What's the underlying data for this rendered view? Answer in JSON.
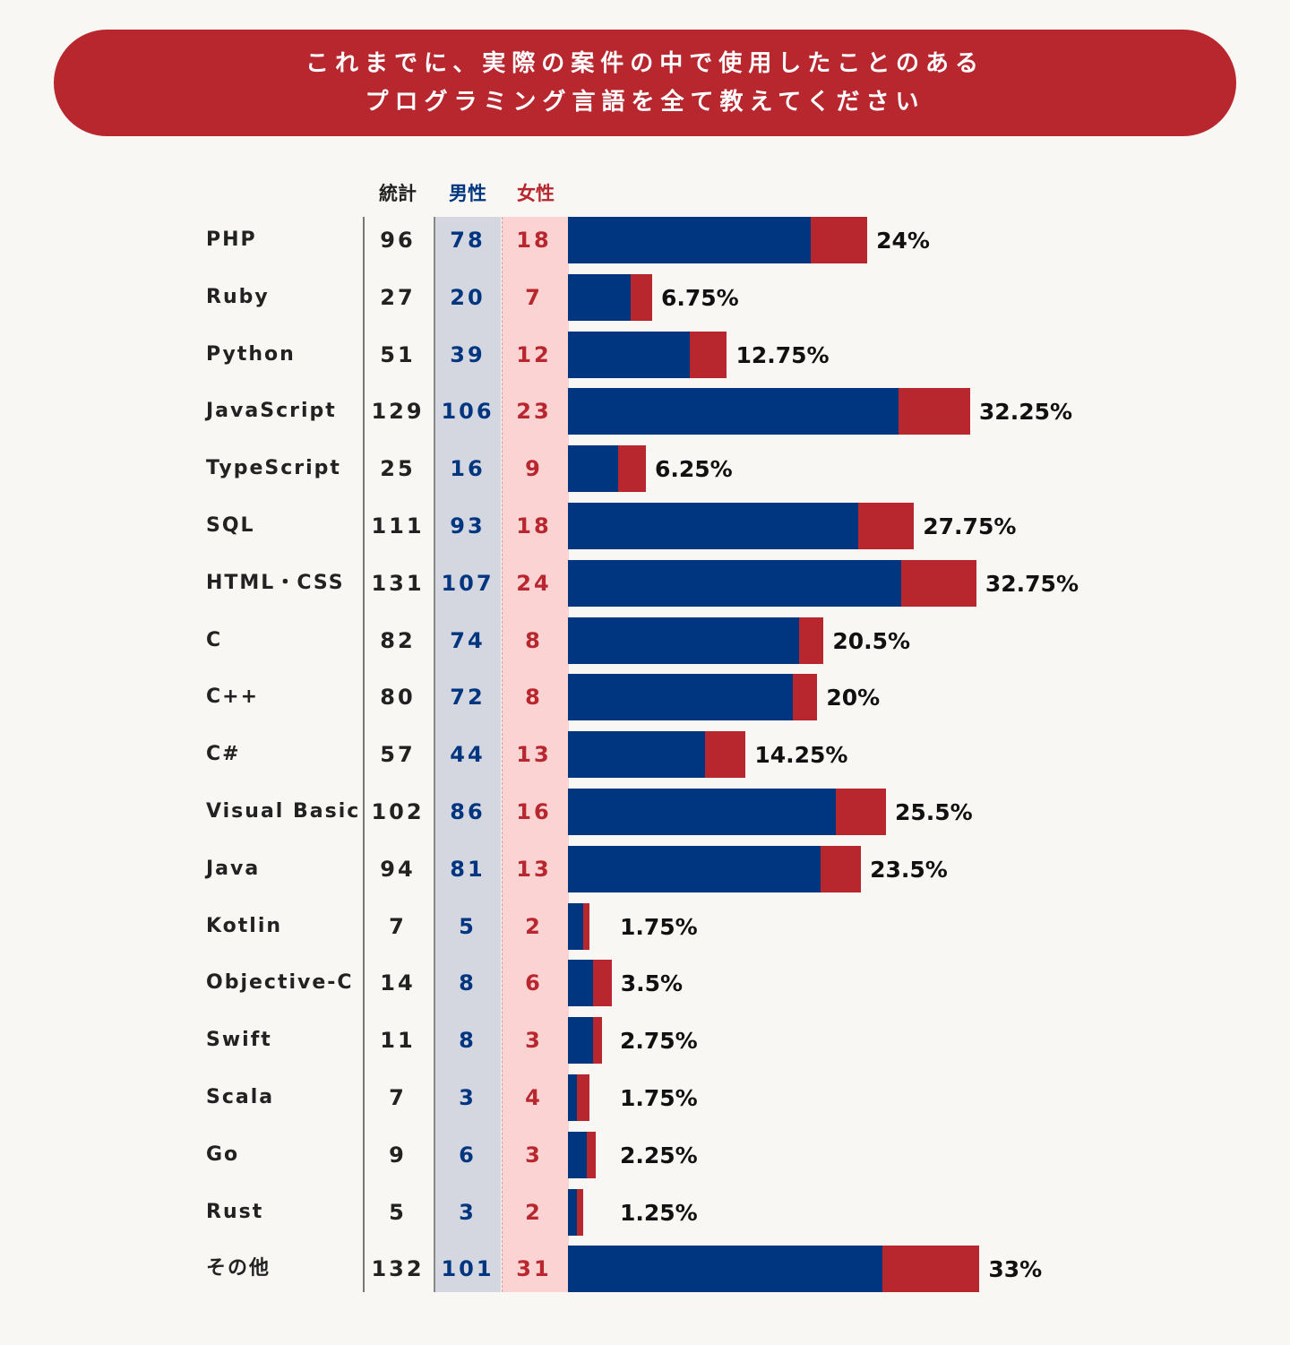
{
  "title_lines": [
    "これまでに、実際の案件の中で使用したことのある",
    "プログラミング言語を全て教えてください"
  ],
  "colors": {
    "male": "#003580",
    "female": "#b8262e",
    "male_bg": "#d5d7e0",
    "female_bg": "#fcd3d3"
  },
  "chart_data": {
    "type": "bar",
    "stacked": true,
    "orientation": "horizontal",
    "title": "これまでに、実際の案件の中で使用したことのある プログラミング言語を全て教えてください",
    "column_headers": {
      "total": "統計",
      "male": "男性",
      "female": "女性"
    },
    "categories": [
      "PHP",
      "Ruby",
      "Python",
      "JavaScript",
      "TypeScript",
      "SQL",
      "HTML・CSS",
      "C",
      "C++",
      "C#",
      "Visual Basic",
      "Java",
      "Kotlin",
      "Objective-C",
      "Swift",
      "Scala",
      "Go",
      "Rust",
      "その他"
    ],
    "totals": [
      96,
      27,
      51,
      129,
      25,
      111,
      131,
      82,
      80,
      57,
      102,
      94,
      7,
      14,
      11,
      7,
      9,
      5,
      132
    ],
    "series": [
      {
        "name": "男性",
        "values": [
          78,
          20,
          39,
          106,
          16,
          93,
          107,
          74,
          72,
          44,
          86,
          81,
          5,
          8,
          8,
          3,
          6,
          3,
          101
        ]
      },
      {
        "name": "女性",
        "values": [
          18,
          7,
          12,
          23,
          9,
          18,
          24,
          8,
          8,
          13,
          16,
          13,
          2,
          6,
          3,
          4,
          3,
          2,
          31
        ]
      }
    ],
    "percent_labels": [
      "24%",
      "6.75%",
      "12.75%",
      "32.25%",
      "6.25%",
      "27.75%",
      "32.75%",
      "20.5%",
      "20%",
      "14.25%",
      "25.5%",
      "23.5%",
      "1.75%",
      "3.5%",
      "2.75%",
      "1.75%",
      "2.25%",
      "1.25%",
      "33%"
    ]
  }
}
